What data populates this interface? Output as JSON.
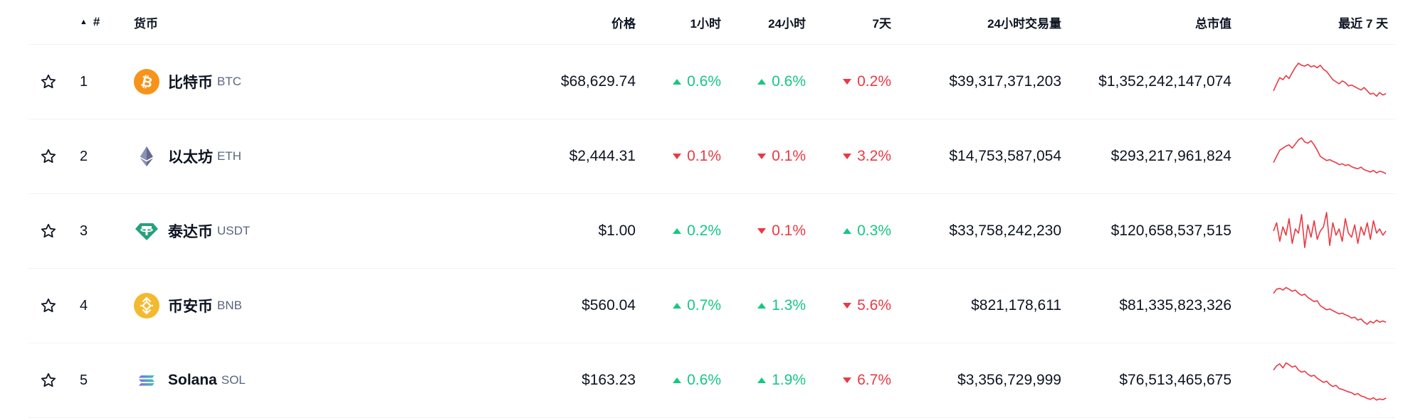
{
  "header": {
    "sort_indicator": "▲",
    "rank": "#",
    "coin": "货币",
    "price": "价格",
    "h1": "1小时",
    "h24": "24小时",
    "d7": "7天",
    "volume": "24小时交易量",
    "market_cap": "总市值",
    "last7": "最近 7 天"
  },
  "rows": [
    {
      "rank": "1",
      "name": "比特币",
      "symbol": "BTC",
      "icon": "bitcoin-icon",
      "price": "$68,629.74",
      "h1": "0.6%",
      "h1_dir": "up",
      "h24": "0.6%",
      "h24_dir": "up",
      "d7": "0.2%",
      "d7_dir": "down",
      "volume": "$39,317,371,203",
      "market_cap": "$1,352,242,147,074",
      "spark": [
        0.72,
        0.55,
        0.4,
        0.45,
        0.35,
        0.42,
        0.28,
        0.15,
        0.05,
        0.1,
        0.12,
        0.08,
        0.14,
        0.11,
        0.16,
        0.1,
        0.2,
        0.25,
        0.35,
        0.45,
        0.5,
        0.55,
        0.48,
        0.52,
        0.6,
        0.58,
        0.62,
        0.66,
        0.7,
        0.64,
        0.72,
        0.8,
        0.78,
        0.85,
        0.76,
        0.82,
        0.79
      ]
    },
    {
      "rank": "2",
      "name": "以太坊",
      "symbol": "ETH",
      "icon": "ethereum-icon",
      "price": "$2,444.31",
      "h1": "0.1%",
      "h1_dir": "down",
      "h24": "0.1%",
      "h24_dir": "down",
      "d7": "3.2%",
      "d7_dir": "down",
      "volume": "$14,753,587,054",
      "market_cap": "$293,217,961,824",
      "spark": [
        0.65,
        0.5,
        0.35,
        0.3,
        0.25,
        0.22,
        0.3,
        0.2,
        0.1,
        0.05,
        0.15,
        0.18,
        0.12,
        0.22,
        0.35,
        0.5,
        0.55,
        0.6,
        0.58,
        0.62,
        0.65,
        0.7,
        0.68,
        0.72,
        0.7,
        0.75,
        0.78,
        0.8,
        0.76,
        0.82,
        0.85,
        0.88,
        0.84,
        0.9,
        0.86,
        0.88,
        0.92
      ]
    },
    {
      "rank": "3",
      "name": "泰达币",
      "symbol": "USDT",
      "icon": "tether-icon",
      "price": "$1.00",
      "h1": "0.2%",
      "h1_dir": "up",
      "h24": "0.1%",
      "h24_dir": "down",
      "d7": "0.3%",
      "d7_dir": "up",
      "volume": "$33,758,242,230",
      "market_cap": "$120,658,537,515",
      "spark": [
        0.5,
        0.3,
        0.75,
        0.4,
        0.6,
        0.2,
        0.8,
        0.45,
        0.55,
        0.1,
        0.9,
        0.35,
        0.65,
        0.25,
        0.7,
        0.5,
        0.4,
        0.05,
        0.85,
        0.3,
        0.6,
        0.45,
        0.75,
        0.2,
        0.55,
        0.65,
        0.35,
        0.8,
        0.4,
        0.6,
        0.3,
        0.7,
        0.25,
        0.55,
        0.45,
        0.6,
        0.5
      ]
    },
    {
      "rank": "4",
      "name": "币安币",
      "symbol": "BNB",
      "icon": "bnb-icon",
      "price": "$560.04",
      "h1": "0.7%",
      "h1_dir": "up",
      "h24": "1.3%",
      "h24_dir": "up",
      "d7": "5.6%",
      "d7_dir": "down",
      "volume": "$821,178,611",
      "market_cap": "$81,335,823,326",
      "spark": [
        0.2,
        0.1,
        0.08,
        0.12,
        0.06,
        0.1,
        0.15,
        0.12,
        0.2,
        0.25,
        0.22,
        0.3,
        0.35,
        0.4,
        0.38,
        0.5,
        0.55,
        0.6,
        0.58,
        0.62,
        0.66,
        0.7,
        0.68,
        0.72,
        0.75,
        0.8,
        0.78,
        0.85,
        0.82,
        0.9,
        0.95,
        0.88,
        0.92,
        0.85,
        0.9,
        0.87,
        0.9
      ]
    },
    {
      "rank": "5",
      "name": "Solana",
      "symbol": "SOL",
      "icon": "solana-icon",
      "price": "$163.23",
      "h1": "0.6%",
      "h1_dir": "up",
      "h24": "1.9%",
      "h24_dir": "up",
      "d7": "6.7%",
      "d7_dir": "down",
      "volume": "$3,356,729,999",
      "market_cap": "$76,513,465,675",
      "spark": [
        0.25,
        0.15,
        0.1,
        0.2,
        0.08,
        0.12,
        0.18,
        0.15,
        0.25,
        0.3,
        0.28,
        0.35,
        0.4,
        0.38,
        0.45,
        0.5,
        0.55,
        0.52,
        0.6,
        0.65,
        0.62,
        0.7,
        0.72,
        0.75,
        0.78,
        0.8,
        0.85,
        0.82,
        0.88,
        0.9,
        0.94,
        0.96,
        0.92,
        0.98,
        0.95,
        0.97,
        0.93
      ]
    }
  ],
  "colors": {
    "up": "#16c784",
    "down": "#ea3943",
    "text": "#0d1421",
    "muted": "#58667e",
    "spark": "#ea3943"
  }
}
